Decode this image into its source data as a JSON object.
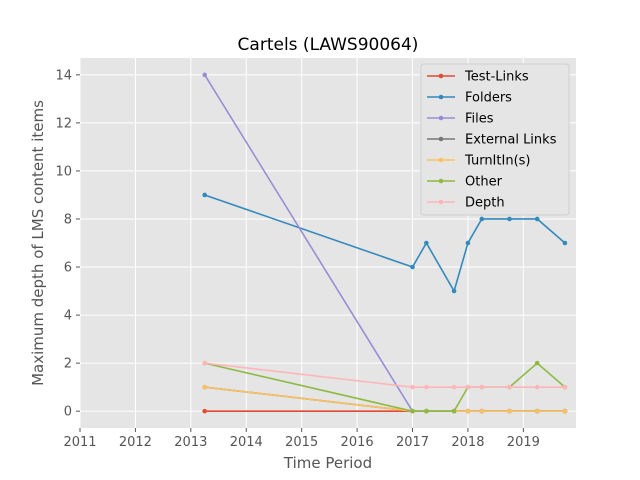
{
  "chart_data": {
    "type": "line",
    "title": "Cartels (LAWS90064)",
    "xlabel": "Time Period",
    "ylabel": "Maximum depth of LMS content items",
    "xlim": [
      2011,
      2019.95
    ],
    "ylim": [
      -0.7,
      14.7
    ],
    "xticks": [
      2011,
      2012,
      2013,
      2014,
      2015,
      2016,
      2017,
      2018,
      2019
    ],
    "yticks": [
      0,
      2,
      4,
      6,
      8,
      10,
      12,
      14
    ],
    "grid": true,
    "legend_position": "top-right",
    "x": [
      2013.25,
      2017.0,
      2017.25,
      2017.75,
      2018.0,
      2018.25,
      2018.75,
      2019.25,
      2019.75
    ],
    "series": [
      {
        "name": "Test-Links",
        "color": "#E24A33",
        "values": [
          0,
          0,
          0,
          0,
          0,
          0,
          0,
          0,
          0
        ]
      },
      {
        "name": "Folders",
        "color": "#348ABD",
        "values": [
          9,
          6,
          7,
          5,
          7,
          8,
          8,
          8,
          7
        ]
      },
      {
        "name": "Files",
        "color": "#988ED5",
        "values": [
          14,
          0,
          0,
          0,
          0,
          0,
          0,
          0,
          0
        ]
      },
      {
        "name": "External Links",
        "color": "#777777",
        "values": [
          1,
          0,
          0,
          0,
          0,
          0,
          0,
          0,
          0
        ]
      },
      {
        "name": "TurnItIn(s)",
        "color": "#FBC15E",
        "values": [
          1,
          0,
          0,
          0,
          0,
          0,
          0,
          0,
          0
        ]
      },
      {
        "name": "Other",
        "color": "#8EBA42",
        "values": [
          2,
          0,
          0,
          0,
          1,
          1,
          1,
          2,
          1
        ]
      },
      {
        "name": "Depth",
        "color": "#FFB5B8",
        "values": [
          2,
          1,
          1,
          1,
          1,
          1,
          1,
          1,
          1
        ]
      }
    ]
  }
}
